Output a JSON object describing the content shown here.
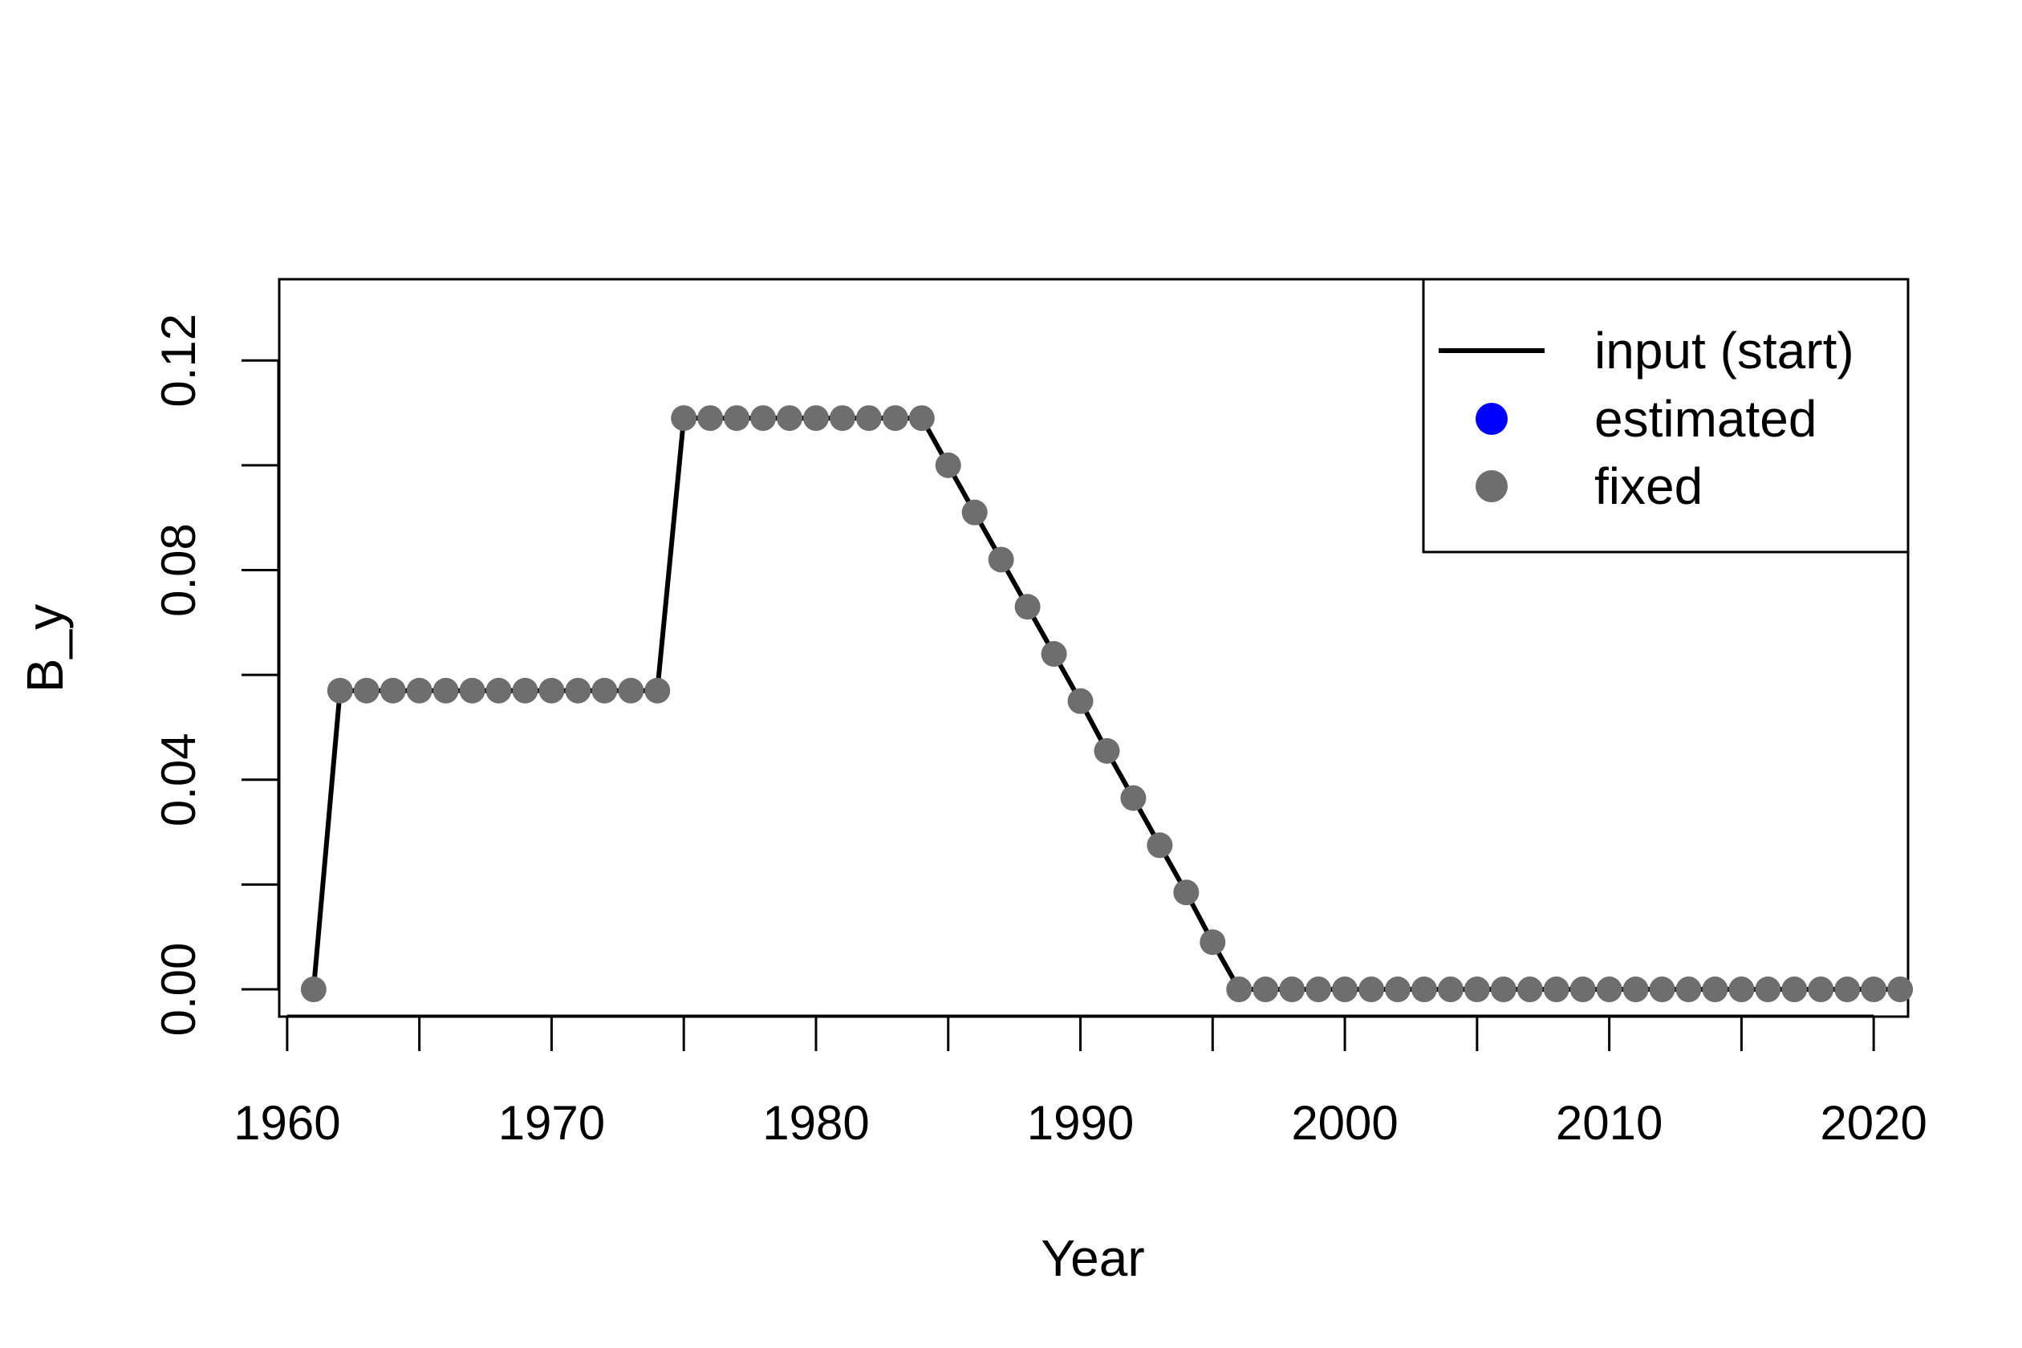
{
  "chart_data": {
    "type": "line",
    "title": "",
    "xlabel": "Year",
    "ylabel": "B_y",
    "xlim": [
      1959.7,
      2021.3
    ],
    "ylim": [
      -0.0052,
      0.1355
    ],
    "x_ticks": [
      "1960",
      "1970",
      "1980",
      "1990",
      "2000",
      "2010",
      "2020"
    ],
    "x_minor_ticks": [
      1965,
      1975,
      1985,
      1995,
      2005,
      2015
    ],
    "y_ticks": [
      "0.00",
      "0.04",
      "0.08",
      "0.12"
    ],
    "y_minor_ticks": [
      0.02,
      0.06,
      0.1
    ],
    "legend": {
      "position": "top-right",
      "entries": [
        {
          "label": "input (start)",
          "kind": "line",
          "color": "#000000"
        },
        {
          "label": "estimated",
          "kind": "point",
          "color": "#0000ff"
        },
        {
          "label": "fixed",
          "kind": "point",
          "color": "#6e6e6e"
        }
      ]
    },
    "x": [
      1961,
      1962,
      1963,
      1964,
      1965,
      1966,
      1967,
      1968,
      1969,
      1970,
      1971,
      1972,
      1973,
      1974,
      1975,
      1976,
      1977,
      1978,
      1979,
      1980,
      1981,
      1982,
      1983,
      1984,
      1985,
      1986,
      1987,
      1988,
      1989,
      1990,
      1991,
      1992,
      1993,
      1994,
      1995,
      1996,
      1997,
      1998,
      1999,
      2000,
      2001,
      2002,
      2003,
      2004,
      2005,
      2006,
      2007,
      2008,
      2009,
      2010,
      2011,
      2012,
      2013,
      2014,
      2015,
      2016,
      2017,
      2018,
      2019,
      2020,
      2021
    ],
    "series": [
      {
        "name": "input (start)",
        "style": "line",
        "color": "#000000",
        "values": [
          0.0,
          0.057,
          0.057,
          0.057,
          0.057,
          0.057,
          0.057,
          0.057,
          0.057,
          0.057,
          0.057,
          0.057,
          0.057,
          0.057,
          0.109,
          0.109,
          0.109,
          0.109,
          0.109,
          0.109,
          0.109,
          0.109,
          0.109,
          0.109,
          0.1,
          0.091,
          0.082,
          0.073,
          0.064,
          0.055,
          0.0455,
          0.0365,
          0.0275,
          0.0185,
          0.009,
          0.0,
          0.0,
          0.0,
          0.0,
          0.0,
          0.0,
          0.0,
          0.0,
          0.0,
          0.0,
          0.0,
          0.0,
          0.0,
          0.0,
          0.0,
          0.0,
          0.0,
          0.0,
          0.0,
          0.0,
          0.0,
          0.0,
          0.0,
          0.0,
          0.0,
          0.0
        ]
      },
      {
        "name": "fixed",
        "style": "points",
        "color": "#6e6e6e",
        "values": [
          0.0,
          0.057,
          0.057,
          0.057,
          0.057,
          0.057,
          0.057,
          0.057,
          0.057,
          0.057,
          0.057,
          0.057,
          0.057,
          0.057,
          0.109,
          0.109,
          0.109,
          0.109,
          0.109,
          0.109,
          0.109,
          0.109,
          0.109,
          0.109,
          0.1,
          0.091,
          0.082,
          0.073,
          0.064,
          0.055,
          0.0455,
          0.0365,
          0.0275,
          0.0185,
          0.009,
          0.0,
          0.0,
          0.0,
          0.0,
          0.0,
          0.0,
          0.0,
          0.0,
          0.0,
          0.0,
          0.0,
          0.0,
          0.0,
          0.0,
          0.0,
          0.0,
          0.0,
          0.0,
          0.0,
          0.0,
          0.0,
          0.0,
          0.0,
          0.0,
          0.0,
          0.0
        ]
      }
    ]
  }
}
